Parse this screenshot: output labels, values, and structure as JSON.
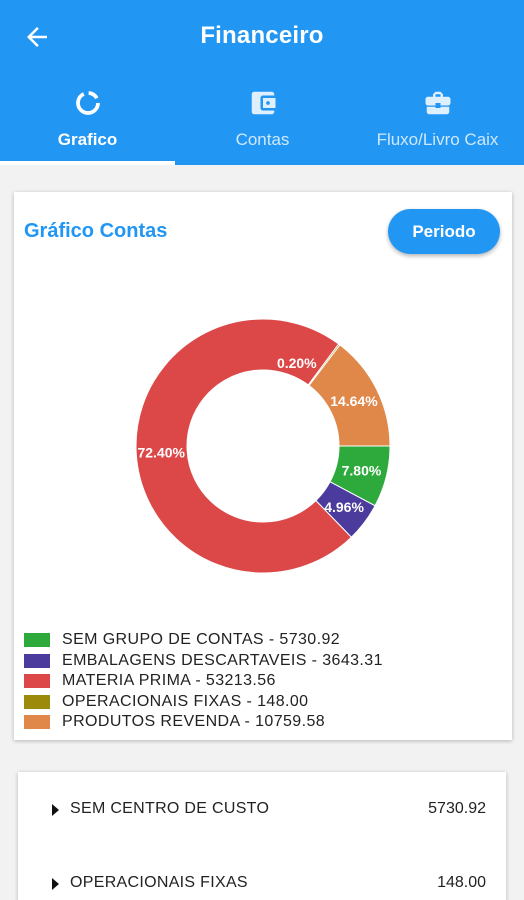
{
  "header": {
    "title": "Financeiro",
    "back_icon": "arrow-left-icon"
  },
  "tabs": [
    {
      "label": "Grafico",
      "icon": "donut-chart-icon",
      "active": true
    },
    {
      "label": "Contas",
      "icon": "wallet-icon",
      "active": false
    },
    {
      "label": "Fluxo/Livro Caix",
      "icon": "briefcase-icon",
      "active": false
    }
  ],
  "card": {
    "title": "Gráfico Contas",
    "periodo_label": "Periodo"
  },
  "chart_data": {
    "type": "pie",
    "donut": true,
    "slices": [
      {
        "label": "SEM GRUPO DE CONTAS - 5730.92",
        "value": 5730.92,
        "percent_label": "7.80%",
        "color": "#2eaa3c"
      },
      {
        "label": "EMBALAGENS DESCARTAVEIS - 3643.31",
        "value": 3643.31,
        "percent_label": "4.96%",
        "color": "#4a3b9c"
      },
      {
        "label": "MATERIA PRIMA - 53213.56",
        "value": 53213.56,
        "percent_label": "72.40%",
        "color": "#dc4848"
      },
      {
        "label": "OPERACIONAIS FIXAS - 148.00",
        "value": 148.0,
        "percent_label": "0.20%",
        "color": "#9c8a0a"
      },
      {
        "label": "PRODUTOS REVENDA - 10759.58",
        "value": 10759.58,
        "percent_label": "14.64%",
        "color": "#e0884a"
      }
    ],
    "legend_position": "bottom-left"
  },
  "cost_centers": [
    {
      "name": "SEM CENTRO DE CUSTO",
      "value": "5730.92"
    },
    {
      "name": "OPERACIONAIS FIXAS",
      "value": "148.00"
    }
  ]
}
